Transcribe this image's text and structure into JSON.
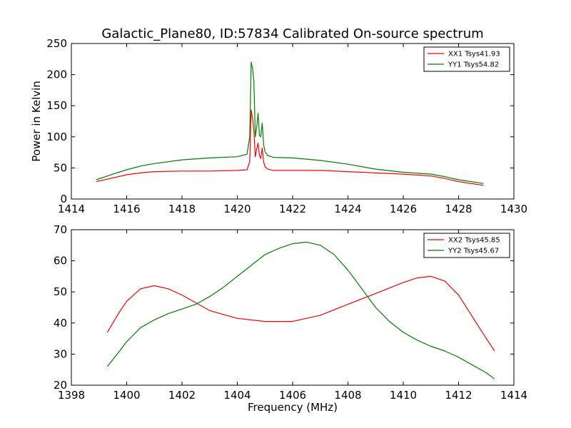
{
  "figure": {
    "title": "Galactic_Plane80, ID:57834 Calibrated On-source spectrum",
    "background": "#ffffff"
  },
  "chart_data": [
    {
      "type": "line",
      "title": "Galactic_Plane80, ID:57834 Calibrated On-source spectrum",
      "xlabel": "",
      "ylabel": "Power in Kelvin",
      "xlim": [
        1414,
        1430
      ],
      "ylim": [
        0,
        250
      ],
      "xticks": [
        "1414",
        "1416",
        "1418",
        "1420",
        "1422",
        "1424",
        "1426",
        "1428",
        "1430"
      ],
      "yticks": [
        "0",
        "50",
        "100",
        "150",
        "200",
        "250"
      ],
      "grid": false,
      "legend_position": "top-right",
      "series": [
        {
          "name": "XX1 Tsys41.93",
          "color": "#ff0000",
          "x": [
            1414.9,
            1415.5,
            1416,
            1416.5,
            1417,
            1418,
            1419,
            1420,
            1420.35,
            1420.45,
            1420.5,
            1420.55,
            1420.6,
            1420.65,
            1420.7,
            1420.75,
            1420.8,
            1420.85,
            1420.9,
            1420.95,
            1421,
            1421.1,
            1421.3,
            1422,
            1423,
            1424,
            1425,
            1426,
            1427,
            1427.5,
            1428,
            1428.9
          ],
          "y": [
            28,
            34,
            39,
            42,
            44,
            45,
            45,
            46,
            47,
            60,
            143,
            130,
            110,
            68,
            80,
            90,
            70,
            65,
            82,
            60,
            52,
            48,
            46,
            46,
            46,
            44,
            42,
            40,
            37,
            33,
            28,
            22
          ]
        },
        {
          "name": "YY1 Tsys54.82",
          "color": "#008000",
          "x": [
            1414.9,
            1415.5,
            1416,
            1416.5,
            1417,
            1418,
            1419,
            1420,
            1420.35,
            1420.45,
            1420.5,
            1420.55,
            1420.6,
            1420.65,
            1420.7,
            1420.75,
            1420.8,
            1420.85,
            1420.9,
            1420.95,
            1421,
            1421.1,
            1421.3,
            1422,
            1423,
            1424,
            1425,
            1426,
            1427,
            1427.5,
            1428,
            1428.9
          ],
          "y": [
            31,
            40,
            47,
            53,
            57,
            63,
            66,
            68,
            72,
            100,
            220,
            210,
            190,
            100,
            115,
            138,
            102,
            100,
            122,
            88,
            76,
            70,
            67,
            66,
            62,
            56,
            48,
            43,
            40,
            36,
            31,
            25
          ]
        }
      ]
    },
    {
      "type": "line",
      "title": "",
      "xlabel": "Frequency (MHz)",
      "ylabel": "",
      "xlim": [
        1398,
        1414
      ],
      "ylim": [
        20,
        70
      ],
      "xticks": [
        "1398",
        "1400",
        "1402",
        "1404",
        "1406",
        "1408",
        "1410",
        "1412",
        "1414"
      ],
      "yticks": [
        "20",
        "30",
        "40",
        "50",
        "60",
        "70"
      ],
      "grid": false,
      "legend_position": "top-right",
      "series": [
        {
          "name": "XX2 Tsys45.85",
          "color": "#ff0000",
          "x": [
            1399.3,
            1399.7,
            1400,
            1400.5,
            1401,
            1401.5,
            1402,
            1402.5,
            1403,
            1404,
            1405,
            1406,
            1407,
            1408,
            1409,
            1410,
            1410.5,
            1411,
            1411.5,
            1412,
            1412.5,
            1413,
            1413.3
          ],
          "y": [
            37,
            43,
            47,
            51,
            52,
            51,
            49,
            46.5,
            44,
            41.5,
            40.5,
            40.5,
            42.5,
            46,
            49.5,
            53,
            54.5,
            55,
            53.5,
            49,
            42,
            35,
            31
          ]
        },
        {
          "name": "YY2 Tsys45.67",
          "color": "#008000",
          "x": [
            1399.3,
            1399.7,
            1400,
            1400.5,
            1401,
            1401.5,
            1402,
            1402.5,
            1403,
            1403.5,
            1404,
            1404.5,
            1405,
            1405.5,
            1406,
            1406.5,
            1407,
            1407.5,
            1408,
            1408.5,
            1409,
            1409.5,
            1410,
            1410.5,
            1411,
            1411.5,
            1412,
            1412.5,
            1413,
            1413.3
          ],
          "y": [
            26,
            30.5,
            34,
            38.5,
            41,
            43,
            44.5,
            46,
            48.5,
            51.5,
            55,
            58.5,
            62,
            64,
            65.5,
            66,
            65,
            62,
            57,
            51,
            45,
            40.5,
            37,
            34.5,
            32.5,
            31,
            29,
            26.5,
            24,
            22
          ]
        }
      ]
    }
  ]
}
